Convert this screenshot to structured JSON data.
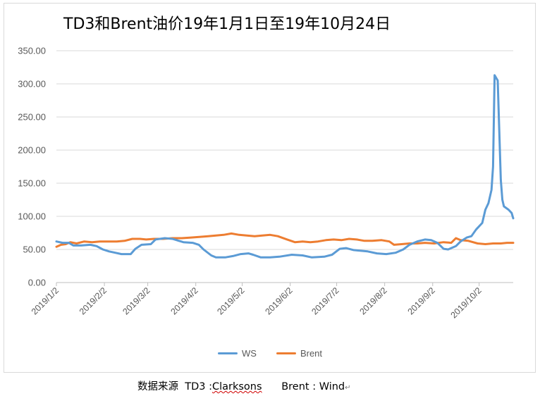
{
  "chart_data": {
    "type": "line",
    "title": "TD3和Brent油价19年1月1日至19年10月24日",
    "ylim": [
      0,
      350
    ],
    "yticks": [
      "0.00",
      "50.00",
      "100.00",
      "150.00",
      "200.00",
      "250.00",
      "300.00",
      "350.00"
    ],
    "x_tick_labels": [
      "2019/1/2",
      "2019/2/2",
      "2019/3/2",
      "2019/4/2",
      "2019/5/2",
      "2019/6/2",
      "2019/7/2",
      "2019/8/2",
      "2019/9/2",
      "2019/10/2"
    ],
    "x_tick_dates": [
      "2019-01-02",
      "2019-02-02",
      "2019-03-02",
      "2019-04-02",
      "2019-05-02",
      "2019-06-02",
      "2019-07-02",
      "2019-08-02",
      "2019-09-02",
      "2019-10-02"
    ],
    "x_range": [
      "2019-01-02",
      "2019-10-24"
    ],
    "grid": "horizontal",
    "legend_position": "bottom",
    "series": [
      {
        "name": "WS",
        "color": "#5b9bd5",
        "points": [
          [
            "2019-01-02",
            62
          ],
          [
            "2019-01-06",
            60
          ],
          [
            "2019-01-10",
            60
          ],
          [
            "2019-01-13",
            56
          ],
          [
            "2019-01-18",
            56
          ],
          [
            "2019-01-24",
            57
          ],
          [
            "2019-01-28",
            55
          ],
          [
            "2019-02-01",
            50
          ],
          [
            "2019-02-05",
            47
          ],
          [
            "2019-02-09",
            45
          ],
          [
            "2019-02-13",
            43
          ],
          [
            "2019-02-19",
            43
          ],
          [
            "2019-02-22",
            51
          ],
          [
            "2019-02-26",
            57
          ],
          [
            "2019-03-04",
            58
          ],
          [
            "2019-03-07",
            65
          ],
          [
            "2019-03-13",
            67
          ],
          [
            "2019-03-18",
            66
          ],
          [
            "2019-03-25",
            61
          ],
          [
            "2019-03-31",
            60
          ],
          [
            "2019-04-04",
            57
          ],
          [
            "2019-04-07",
            50
          ],
          [
            "2019-04-12",
            41
          ],
          [
            "2019-04-15",
            38
          ],
          [
            "2019-04-21",
            38
          ],
          [
            "2019-04-26",
            40
          ],
          [
            "2019-05-01",
            43
          ],
          [
            "2019-05-06",
            44
          ],
          [
            "2019-05-09",
            42
          ],
          [
            "2019-05-14",
            38
          ],
          [
            "2019-05-20",
            38
          ],
          [
            "2019-05-26",
            39
          ],
          [
            "2019-06-03",
            42
          ],
          [
            "2019-06-10",
            41
          ],
          [
            "2019-06-16",
            38
          ],
          [
            "2019-06-24",
            39
          ],
          [
            "2019-06-29",
            42
          ],
          [
            "2019-07-04",
            51
          ],
          [
            "2019-07-08",
            52
          ],
          [
            "2019-07-13",
            49
          ],
          [
            "2019-07-22",
            47
          ],
          [
            "2019-07-28",
            44
          ],
          [
            "2019-08-03",
            43
          ],
          [
            "2019-08-09",
            45
          ],
          [
            "2019-08-14",
            50
          ],
          [
            "2019-08-18",
            57
          ],
          [
            "2019-08-23",
            62
          ],
          [
            "2019-08-28",
            65
          ],
          [
            "2019-09-01",
            64
          ],
          [
            "2019-09-05",
            60
          ],
          [
            "2019-09-09",
            51
          ],
          [
            "2019-09-12",
            50
          ],
          [
            "2019-09-17",
            55
          ],
          [
            "2019-09-20",
            62
          ],
          [
            "2019-09-24",
            68
          ],
          [
            "2019-09-27",
            70
          ],
          [
            "2019-09-30",
            80
          ],
          [
            "2019-10-04",
            90
          ],
          [
            "2019-10-06",
            110
          ],
          [
            "2019-10-08",
            120
          ],
          [
            "2019-10-10",
            140
          ],
          [
            "2019-10-11",
            175
          ],
          [
            "2019-10-12",
            313
          ],
          [
            "2019-10-14",
            305
          ],
          [
            "2019-10-16",
            155
          ],
          [
            "2019-10-17",
            125
          ],
          [
            "2019-10-18",
            115
          ],
          [
            "2019-10-21",
            110
          ],
          [
            "2019-10-23",
            105
          ],
          [
            "2019-10-24",
            97
          ]
        ]
      },
      {
        "name": "Brent",
        "color": "#ed7d31",
        "points": [
          [
            "2019-01-02",
            54
          ],
          [
            "2019-01-05",
            57
          ],
          [
            "2019-01-08",
            58
          ],
          [
            "2019-01-11",
            61
          ],
          [
            "2019-01-15",
            59
          ],
          [
            "2019-01-20",
            62
          ],
          [
            "2019-01-25",
            61
          ],
          [
            "2019-01-30",
            62
          ],
          [
            "2019-02-05",
            62
          ],
          [
            "2019-02-10",
            62
          ],
          [
            "2019-02-15",
            63
          ],
          [
            "2019-02-20",
            66
          ],
          [
            "2019-02-25",
            66
          ],
          [
            "2019-03-01",
            65
          ],
          [
            "2019-03-06",
            66
          ],
          [
            "2019-03-12",
            66
          ],
          [
            "2019-03-18",
            67
          ],
          [
            "2019-03-24",
            67
          ],
          [
            "2019-03-30",
            68
          ],
          [
            "2019-04-05",
            69
          ],
          [
            "2019-04-10",
            70
          ],
          [
            "2019-04-15",
            71
          ],
          [
            "2019-04-20",
            72
          ],
          [
            "2019-04-25",
            74
          ],
          [
            "2019-04-30",
            72
          ],
          [
            "2019-05-05",
            71
          ],
          [
            "2019-05-10",
            70
          ],
          [
            "2019-05-15",
            71
          ],
          [
            "2019-05-20",
            72
          ],
          [
            "2019-05-25",
            70
          ],
          [
            "2019-05-31",
            65
          ],
          [
            "2019-06-05",
            61
          ],
          [
            "2019-06-10",
            62
          ],
          [
            "2019-06-15",
            61
          ],
          [
            "2019-06-20",
            62
          ],
          [
            "2019-06-25",
            64
          ],
          [
            "2019-06-30",
            65
          ],
          [
            "2019-07-05",
            64
          ],
          [
            "2019-07-10",
            66
          ],
          [
            "2019-07-15",
            65
          ],
          [
            "2019-07-20",
            63
          ],
          [
            "2019-07-25",
            63
          ],
          [
            "2019-07-31",
            64
          ],
          [
            "2019-08-05",
            62
          ],
          [
            "2019-08-08",
            57
          ],
          [
            "2019-08-13",
            58
          ],
          [
            "2019-08-18",
            59
          ],
          [
            "2019-08-23",
            59
          ],
          [
            "2019-08-28",
            60
          ],
          [
            "2019-09-03",
            59
          ],
          [
            "2019-09-09",
            61
          ],
          [
            "2019-09-14",
            60
          ],
          [
            "2019-09-17",
            67
          ],
          [
            "2019-09-20",
            64
          ],
          [
            "2019-09-25",
            63
          ],
          [
            "2019-10-01",
            59
          ],
          [
            "2019-10-06",
            58
          ],
          [
            "2019-10-11",
            59
          ],
          [
            "2019-10-16",
            59
          ],
          [
            "2019-10-20",
            60
          ],
          [
            "2019-10-24",
            60
          ]
        ]
      }
    ]
  },
  "source_text": {
    "prefix": "数据来源  TD3 :",
    "clarksons": "Clarksons",
    "rest": "      Brent : Wind",
    "return_mark": "↵"
  }
}
